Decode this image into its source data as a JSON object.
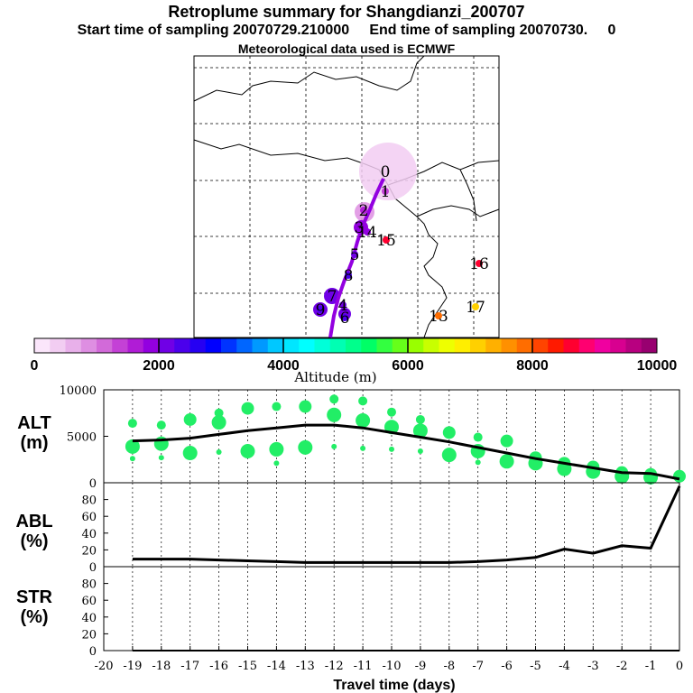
{
  "header": {
    "title": "Retroplume summary for Shangdianzi_200707",
    "start_label": "Start time of sampling 20070729.210000",
    "end_label": "End time of sampling 20070730.",
    "end_value": "0",
    "met_label": "Meteorological data used is ECMWF"
  },
  "colorbar": {
    "label": "Altitude (m)",
    "ticks": [
      "0",
      "2000",
      "4000",
      "6000",
      "8000",
      "10000"
    ],
    "colors": [
      "#fbe6fb",
      "#f2cdf2",
      "#e8b0ea",
      "#de8ee2",
      "#d26ad9",
      "#c441d6",
      "#b01cd6",
      "#9300e0",
      "#7000e6",
      "#4b00ec",
      "#2600f2",
      "#0000ff",
      "#0033ff",
      "#0066ff",
      "#0099ff",
      "#00c8ff",
      "#00e6ff",
      "#00ffff",
      "#00ffd9",
      "#00ffb3",
      "#00ff8c",
      "#00ff66",
      "#33ff40",
      "#66ff1a",
      "#99ff00",
      "#c8ff00",
      "#eeff00",
      "#ffee00",
      "#ffd000",
      "#ffb000",
      "#ff9000",
      "#ff6d00",
      "#ff4400",
      "#ff1a00",
      "#ff0030",
      "#ff0070",
      "#f000a0",
      "#d80090",
      "#b80080",
      "#980070"
    ]
  },
  "map": {
    "markers": [
      {
        "label": "0",
        "color": "#f2cdf2"
      },
      {
        "label": "1",
        "color": "#c441d6"
      },
      {
        "label": "2",
        "color": "#b01cd6"
      },
      {
        "label": "3",
        "color": "#9300e0"
      },
      {
        "label": "4",
        "color": "#7000e6"
      },
      {
        "label": "5",
        "color": "#7000e6"
      },
      {
        "label": "6",
        "color": "#4b00ec"
      },
      {
        "label": "7",
        "color": "#7000e6"
      },
      {
        "label": "8",
        "color": "#4b00ec"
      },
      {
        "label": "9",
        "color": "#4b00ec"
      },
      {
        "label": "13",
        "color": "#ff6d00"
      },
      {
        "label": "14",
        "color": "#9300e0"
      },
      {
        "label": "15",
        "color": "#ff0030"
      },
      {
        "label": "16",
        "color": "#ff0030"
      },
      {
        "label": "17",
        "color": "#ffd000"
      }
    ]
  },
  "colors": {
    "cluster": "#22ee66",
    "line": "#000000"
  },
  "panels": {
    "alt_label_1": "ALT",
    "alt_label_2": "(m)",
    "abl_label_1": "ABL",
    "abl_label_2": "(%)",
    "str_label_1": "STR",
    "str_label_2": "(%)",
    "xlabel": "Travel time (days)"
  },
  "chart_data": [
    {
      "type": "line",
      "name": "ALT",
      "ylabel": "(m)",
      "xlim": [
        -20,
        0
      ],
      "ylim": [
        0,
        10000
      ],
      "yticks": [
        0,
        5000,
        10000
      ],
      "x": [
        -19,
        -18,
        -17,
        -16,
        -15,
        -14,
        -13,
        -12,
        -11,
        -10,
        -9,
        -8,
        -7,
        -6,
        -5,
        -4,
        -3,
        -2,
        -1,
        0
      ],
      "values": [
        4500,
        4600,
        4800,
        5200,
        5600,
        5900,
        6200,
        6200,
        5900,
        5400,
        4900,
        4400,
        3800,
        3200,
        2600,
        2100,
        1600,
        1100,
        1000,
        400
      ],
      "clusters": [
        {
          "x": -19,
          "alt": [
            6400,
            3900,
            2600
          ]
        },
        {
          "x": -18,
          "alt": [
            6200,
            4200,
            2700
          ]
        },
        {
          "x": -17,
          "alt": [
            6800,
            3200
          ]
        },
        {
          "x": -16,
          "alt": [
            7500,
            6500,
            3300
          ]
        },
        {
          "x": -15,
          "alt": [
            8000,
            3400
          ]
        },
        {
          "x": -14,
          "alt": [
            8200,
            3600,
            2100
          ]
        },
        {
          "x": -13,
          "alt": [
            8200,
            3800
          ]
        },
        {
          "x": -12,
          "alt": [
            9000,
            7300,
            3900
          ]
        },
        {
          "x": -11,
          "alt": [
            8800,
            6700,
            3700
          ]
        },
        {
          "x": -10,
          "alt": [
            7600,
            6000,
            3600
          ]
        },
        {
          "x": -9,
          "alt": [
            6800,
            5600,
            3400
          ]
        },
        {
          "x": -8,
          "alt": [
            5400,
            3000
          ]
        },
        {
          "x": -7,
          "alt": [
            4900,
            3400,
            2200
          ]
        },
        {
          "x": -6,
          "alt": [
            4500,
            2300
          ]
        },
        {
          "x": -5,
          "alt": [
            2700,
            2100
          ]
        },
        {
          "x": -4,
          "alt": [
            2100,
            1500
          ]
        },
        {
          "x": -3,
          "alt": [
            1700,
            1200
          ]
        },
        {
          "x": -2,
          "alt": [
            1100,
            700
          ]
        },
        {
          "x": -1,
          "alt": [
            900,
            600
          ]
        },
        {
          "x": 0,
          "alt": [
            700
          ]
        }
      ]
    },
    {
      "type": "line",
      "name": "ABL",
      "ylabel": "(%)",
      "xlim": [
        -20,
        0
      ],
      "ylim": [
        0,
        100
      ],
      "yticks": [
        0,
        20,
        40,
        60,
        80
      ],
      "x": [
        -19,
        -18,
        -17,
        -16,
        -15,
        -14,
        -13,
        -12,
        -11,
        -10,
        -9,
        -8,
        -7,
        -6,
        -5,
        -4,
        -3,
        -2,
        -1,
        0
      ],
      "values": [
        9,
        9,
        9,
        8,
        7,
        6,
        5,
        5,
        5,
        5,
        5,
        5,
        6,
        8,
        11,
        21,
        16,
        25,
        22,
        96
      ]
    },
    {
      "type": "line",
      "name": "STR",
      "ylabel": "(%)",
      "xlim": [
        -20,
        0
      ],
      "ylim": [
        0,
        100
      ],
      "yticks": [
        0,
        20,
        40,
        60,
        80
      ],
      "x": [
        -19,
        -18,
        -17,
        -16,
        -15,
        -14,
        -13,
        -12,
        -11,
        -10,
        -9,
        -8,
        -7,
        -6,
        -5,
        -4,
        -3,
        -2,
        -1,
        0
      ],
      "values": [
        0,
        0,
        0,
        0,
        0,
        0,
        0,
        0,
        0,
        0,
        0,
        0,
        0,
        0,
        0,
        0,
        0,
        0,
        0,
        0
      ],
      "xticks": [
        -20,
        -19,
        -18,
        -17,
        -16,
        -15,
        -14,
        -13,
        -12,
        -11,
        -10,
        -9,
        -8,
        -7,
        -6,
        -5,
        -4,
        -3,
        -2,
        -1,
        0
      ],
      "xlabel": "Travel time (days)"
    }
  ]
}
